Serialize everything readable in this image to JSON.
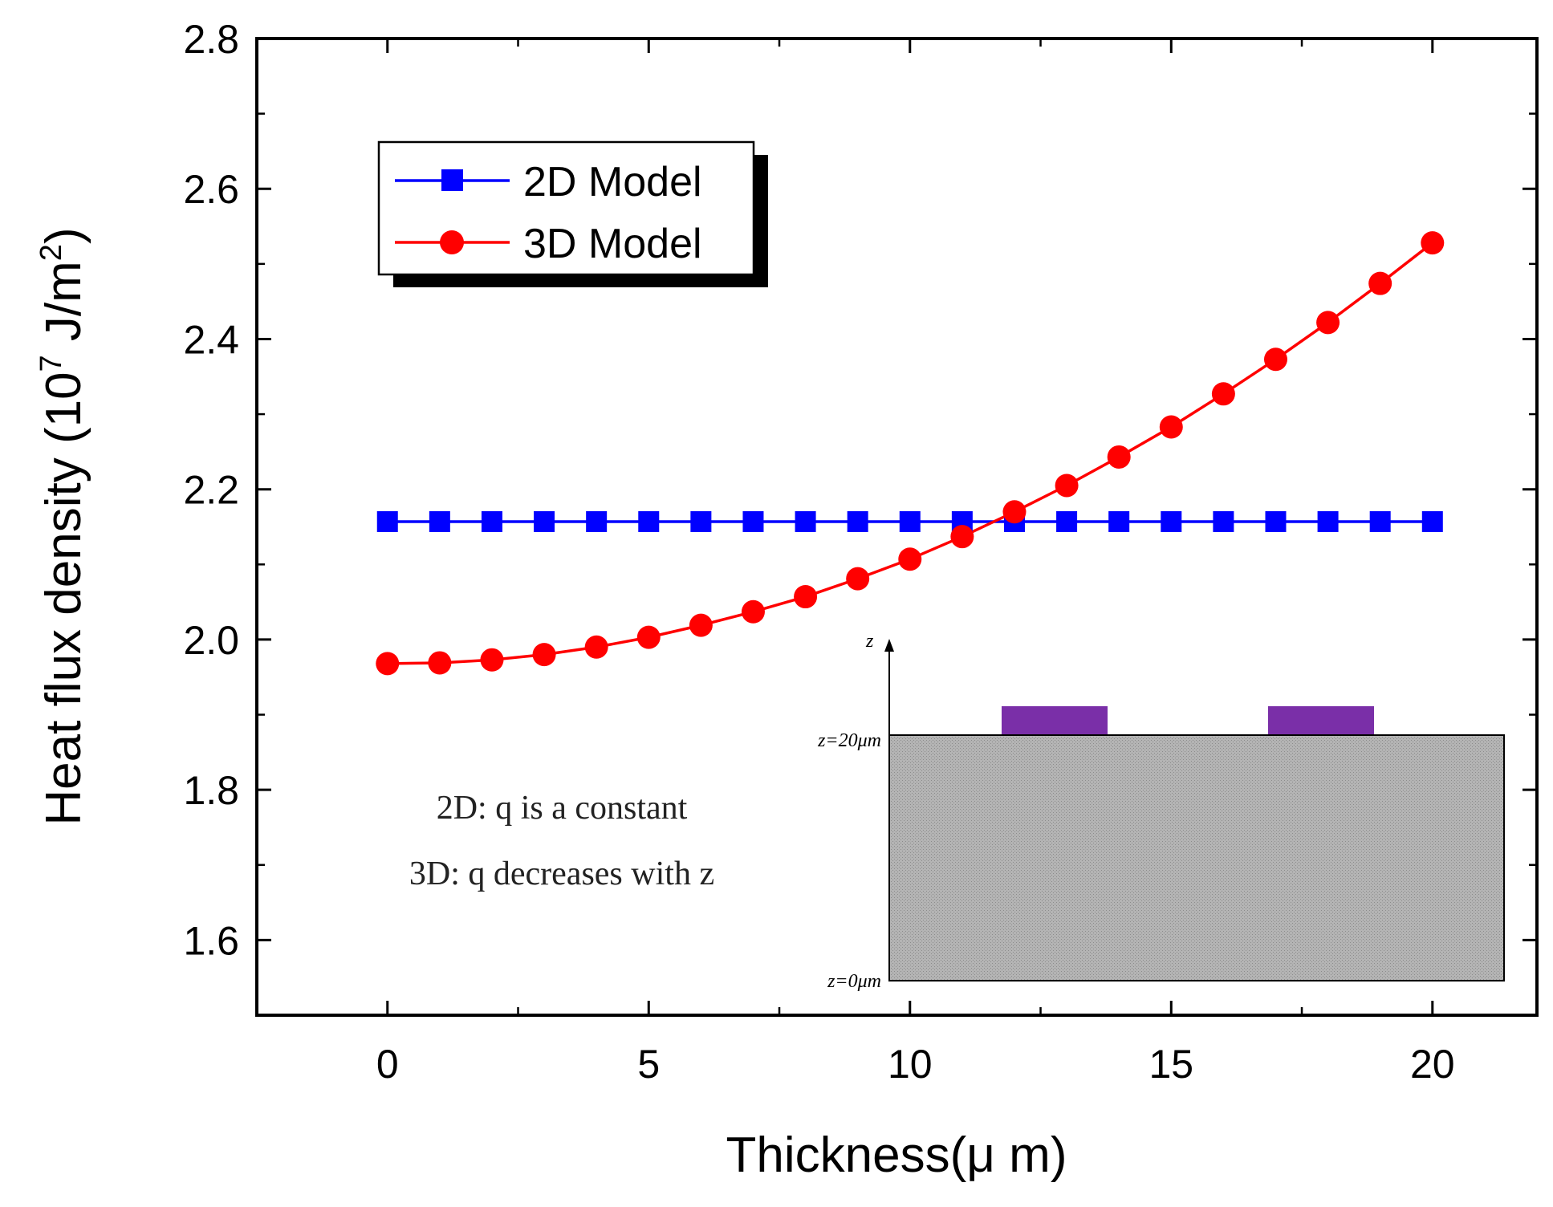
{
  "chart_data": {
    "type": "line",
    "title": "",
    "xlabel": "Thickness(μ m)",
    "ylabel_main": "Heat flux density (10",
    "ylabel_sup1": "7",
    "ylabel_mid": " J/m",
    "ylabel_sup2": "2",
    "ylabel_end": ")",
    "xlim": [
      -2.5,
      22
    ],
    "ylim": [
      1.5,
      2.8
    ],
    "x_ticks": [
      0,
      5,
      10,
      15,
      20
    ],
    "x_tick_labels": [
      "0",
      "5",
      "10",
      "15",
      "20"
    ],
    "y_ticks": [
      1.6,
      1.8,
      2.0,
      2.2,
      2.4,
      2.6,
      2.8
    ],
    "y_tick_labels": [
      "1.6",
      "1.8",
      "2.0",
      "2.2",
      "2.4",
      "2.6",
      "2.8"
    ],
    "x": [
      0,
      1,
      2,
      3,
      4,
      5,
      6,
      7,
      8,
      9,
      10,
      11,
      12,
      13,
      14,
      15,
      16,
      17,
      18,
      19,
      20
    ],
    "series": [
      {
        "name": "2D Model",
        "color": "#0000ff",
        "marker": "square",
        "values": [
          2.157,
          2.157,
          2.157,
          2.157,
          2.157,
          2.157,
          2.157,
          2.157,
          2.157,
          2.157,
          2.157,
          2.157,
          2.157,
          2.157,
          2.157,
          2.157,
          2.157,
          2.157,
          2.157,
          2.157,
          2.157
        ]
      },
      {
        "name": "3D Model",
        "color": "#ff0000",
        "marker": "circle",
        "values": [
          1.968,
          1.969,
          1.973,
          1.98,
          1.99,
          2.003,
          2.019,
          2.037,
          2.057,
          2.081,
          2.107,
          2.137,
          2.17,
          2.205,
          2.243,
          2.283,
          2.327,
          2.373,
          2.422,
          2.474,
          2.528
        ]
      }
    ],
    "legend_position": "top-left",
    "annotations": [
      "2D: q is a constant",
      "3D: q decreases with z"
    ],
    "inset": {
      "z_axis_label": "z",
      "top_label": "z=20μm",
      "bottom_label": "z=0μm",
      "substrate_color": "#a9a9a9",
      "electrode_color": "#7a2fa8"
    }
  }
}
